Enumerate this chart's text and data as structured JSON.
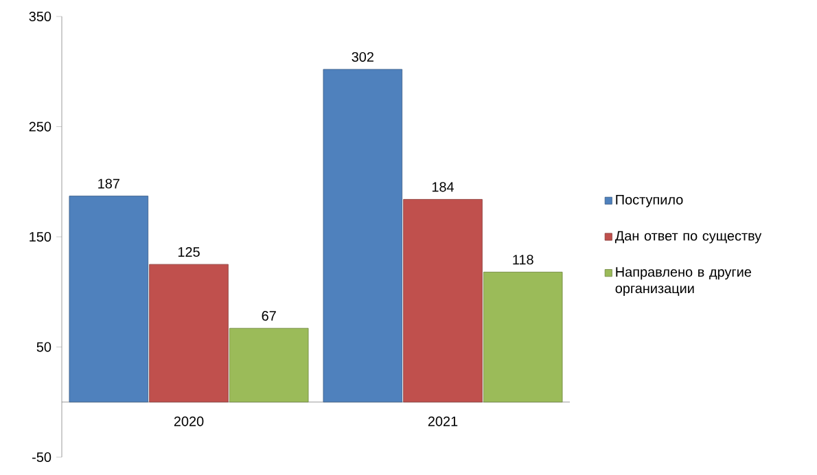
{
  "chart_data": {
    "type": "bar",
    "categories": [
      "2020",
      "2021"
    ],
    "series": [
      {
        "name": "Поступило",
        "color": "#4f81bd",
        "values": [
          187,
          302
        ]
      },
      {
        "name": "Дан ответ по существу",
        "color": "#c0504d",
        "values": [
          125,
          184
        ]
      },
      {
        "name": "Направлено в другие организации",
        "color": "#9bbb59",
        "values": [
          67,
          118
        ]
      }
    ],
    "ylim": [
      -50,
      350
    ],
    "yticks": [
      -50,
      50,
      150,
      250,
      350
    ],
    "data_labels": true,
    "legend": "right",
    "grid": false
  }
}
